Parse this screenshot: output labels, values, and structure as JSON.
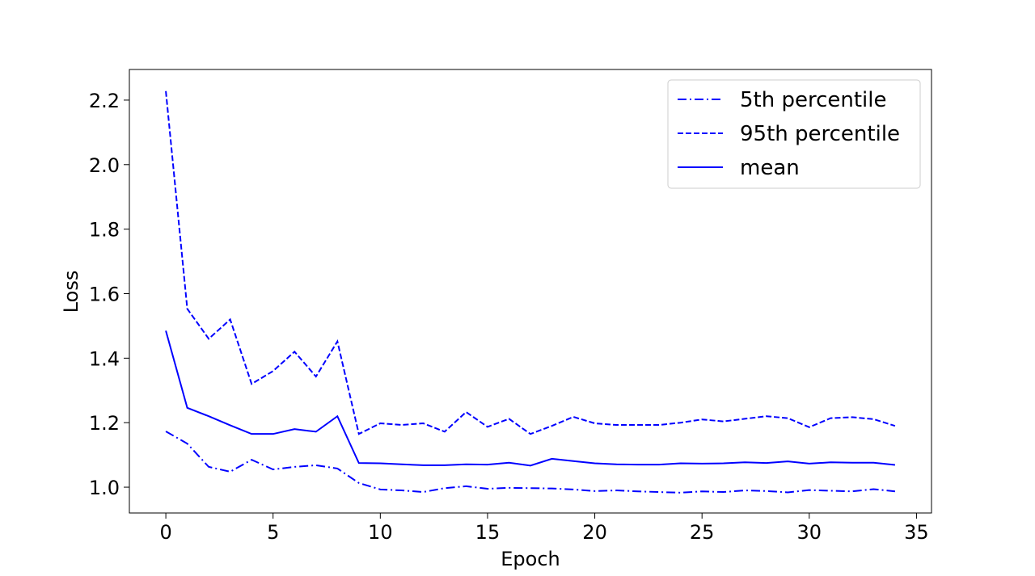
{
  "chart_data": {
    "type": "line",
    "title": "",
    "xlabel": "Epoch",
    "ylabel": "Loss",
    "xlim": [
      -1.7,
      35.7
    ],
    "ylim": [
      0.92,
      2.295
    ],
    "xticks": [
      0,
      5,
      10,
      15,
      20,
      25,
      30,
      35
    ],
    "yticks": [
      1.0,
      1.2,
      1.4,
      1.6,
      1.8,
      2.0,
      2.2
    ],
    "ytick_labels": [
      "1.0",
      "1.2",
      "1.4",
      "1.6",
      "1.8",
      "2.0",
      "2.2"
    ],
    "grid": false,
    "legend_position": "top-right",
    "x": [
      0,
      1,
      2,
      3,
      4,
      5,
      6,
      7,
      8,
      9,
      10,
      11,
      12,
      13,
      14,
      15,
      16,
      17,
      18,
      19,
      20,
      21,
      22,
      23,
      24,
      25,
      26,
      27,
      28,
      29,
      30,
      31,
      32,
      33,
      34
    ],
    "series": [
      {
        "name": "5th percentile",
        "style": "dashdot",
        "color": "#0000ff",
        "values": [
          1.173,
          1.135,
          1.063,
          1.048,
          1.085,
          1.055,
          1.063,
          1.068,
          1.058,
          1.013,
          0.993,
          0.99,
          0.985,
          0.997,
          1.003,
          0.995,
          0.998,
          0.997,
          0.996,
          0.993,
          0.988,
          0.99,
          0.987,
          0.985,
          0.983,
          0.987,
          0.985,
          0.99,
          0.988,
          0.984,
          0.991,
          0.989,
          0.987,
          0.994,
          0.987
        ]
      },
      {
        "name": "95th percentile",
        "style": "dashed",
        "color": "#0000ff",
        "values": [
          2.228,
          1.553,
          1.46,
          1.52,
          1.32,
          1.36,
          1.42,
          1.343,
          1.452,
          1.165,
          1.198,
          1.193,
          1.198,
          1.172,
          1.233,
          1.187,
          1.212,
          1.165,
          1.19,
          1.218,
          1.198,
          1.193,
          1.193,
          1.193,
          1.2,
          1.21,
          1.204,
          1.212,
          1.22,
          1.214,
          1.186,
          1.214,
          1.217,
          1.211,
          1.19
        ]
      },
      {
        "name": "mean",
        "style": "solid",
        "color": "#0000ff",
        "values": [
          1.485,
          1.246,
          1.22,
          1.192,
          1.165,
          1.165,
          1.18,
          1.172,
          1.22,
          1.075,
          1.074,
          1.071,
          1.068,
          1.068,
          1.071,
          1.07,
          1.076,
          1.067,
          1.088,
          1.081,
          1.074,
          1.071,
          1.07,
          1.07,
          1.074,
          1.073,
          1.074,
          1.077,
          1.075,
          1.08,
          1.073,
          1.077,
          1.076,
          1.076,
          1.069
        ]
      }
    ]
  }
}
